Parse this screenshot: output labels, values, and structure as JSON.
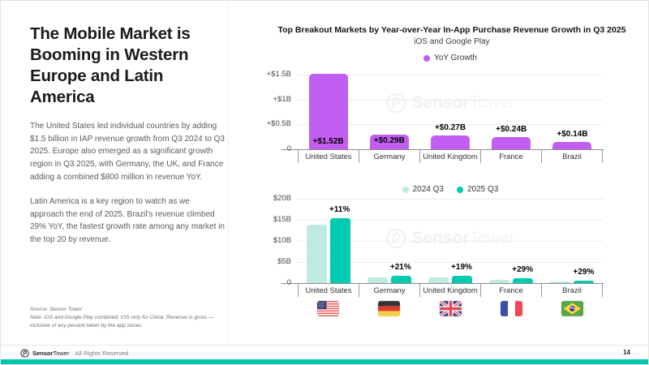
{
  "slide": {
    "headline": "The Mobile Market is Booming in Western Europe and Latin America",
    "paragraph_1": "The United States led individual countries by adding $1.5 billion in IAP revenue growth from Q3 2024 to Q3 2025. Europe also emerged as a significant growth region in Q3 2025, with Germany, the UK, and France adding a combined $800 million in revenue YoY.",
    "paragraph_2": "Latin America is a key region to watch as we approach the end of 2025. Brazil's revenue climbed 29% YoY, the fastest growth rate among any market in the top 20 by revenue.",
    "source_line": "Source: Sensor Tower",
    "note_line": "Note: iOS and Google Play combined. iOS only for China. Revenue is gross — inclusive of any percent taken by the app stores.",
    "watermark": {
      "bold": "Sensor",
      "light": "Tower"
    },
    "footer": {
      "brand_bold": "Sensor",
      "brand_light": "Tower",
      "rights_text": "All Rights Reserved",
      "page_number": "14"
    }
  },
  "colors": {
    "purple": "#c25ff2",
    "teal_light": "#bfeae2",
    "teal_dark": "#00cbb0",
    "footer_bar": "#00c6ad"
  },
  "chart_data": [
    {
      "type": "bar",
      "title": "Top Breakout Markets by Year-over-Year In-App Purchase Revenue Growth in Q3 2025",
      "subtitle": "iOS and Google Play",
      "legend": [
        {
          "label": "YoY Growth",
          "color": "#c25ff2"
        }
      ],
      "legend_position": "top-center",
      "categories": [
        "United States",
        "Germany",
        "United Kingdom",
        "France",
        "Brazil"
      ],
      "values": [
        1.52,
        0.29,
        0.27,
        0.24,
        0.14
      ],
      "bar_labels": [
        "+$1.52B",
        "+$0.29B",
        "+$0.27B",
        "+$0.24B",
        "+$0.14B"
      ],
      "label_placement": [
        "inside-bottom",
        "inside-top",
        "above",
        "above",
        "above"
      ],
      "unit": "USD billions (YoY revenue growth)",
      "ylim": [
        0,
        1.6
      ],
      "yticks": [
        {
          "label": "0",
          "value": 0
        },
        {
          "label": "+$0.5B",
          "value": 0.5
        },
        {
          "label": "+$1B",
          "value": 1
        },
        {
          "label": "+$1.5B",
          "value": 1.5
        }
      ],
      "grid": true
    },
    {
      "type": "grouped-bar",
      "legend_position": "top-center",
      "categories": [
        "United States",
        "Germany",
        "United Kingdom",
        "France",
        "Brazil"
      ],
      "series": [
        {
          "name": "2024 Q3",
          "color": "#bfeae2",
          "values": [
            13.8,
            1.38,
            1.42,
            0.83,
            0.48
          ]
        },
        {
          "name": "2025 Q3",
          "color": "#00cbb0",
          "values": [
            15.3,
            1.67,
            1.69,
            1.07,
            0.62
          ]
        }
      ],
      "growth_labels": [
        "+11%",
        "+21%",
        "+19%",
        "+29%",
        "+29%"
      ],
      "unit": "USD billions (quarterly IAP revenue)",
      "ylim": [
        0,
        20
      ],
      "yticks": [
        {
          "label": "0",
          "value": 0
        },
        {
          "label": "$5B",
          "value": 5
        },
        {
          "label": "$10B",
          "value": 10
        },
        {
          "label": "$15B",
          "value": 15
        },
        {
          "label": "$20B",
          "value": 20
        }
      ],
      "grid": true,
      "flags": [
        "us",
        "de",
        "gb",
        "fr",
        "br"
      ]
    }
  ]
}
